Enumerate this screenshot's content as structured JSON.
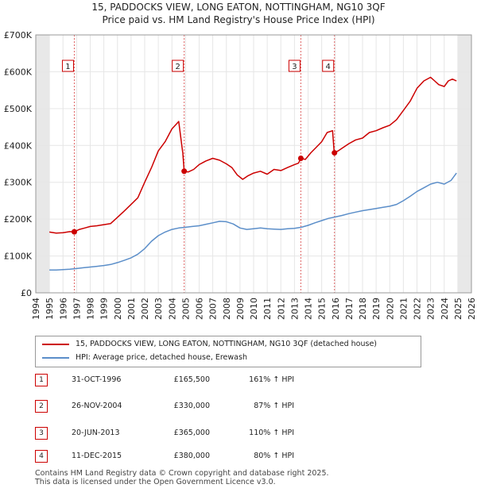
{
  "title": {
    "line1": "15, PADDOCKS VIEW, LONG EATON, NOTTINGHAM, NG10 3QF",
    "line2": "Price paid vs. HM Land Registry's House Price Index (HPI)"
  },
  "chart_data": {
    "type": "line",
    "title": "15, PADDOCKS VIEW, LONG EATON, NOTTINGHAM, NG10 3QF — Price paid vs. HM Land Registry's House Price Index (HPI)",
    "xlim": [
      1994,
      2026
    ],
    "ylim": [
      0,
      700000
    ],
    "y_ticks": [
      0,
      100000,
      200000,
      300000,
      400000,
      500000,
      600000,
      700000
    ],
    "y_tick_labels": [
      "£0",
      "£100K",
      "£200K",
      "£300K",
      "£400K",
      "£500K",
      "£600K",
      "£700K"
    ],
    "x_ticks": [
      1994,
      1995,
      1996,
      1997,
      1998,
      1999,
      2000,
      2001,
      2002,
      2003,
      2004,
      2005,
      2006,
      2007,
      2008,
      2009,
      2010,
      2011,
      2012,
      2013,
      2014,
      2015,
      2016,
      2017,
      2018,
      2019,
      2020,
      2021,
      2022,
      2023,
      2024,
      2025,
      2026
    ],
    "x_tick_labels": [
      "1994",
      "1995",
      "1996",
      "1997",
      "1998",
      "1999",
      "2000",
      "2001",
      "2002",
      "2003",
      "2004",
      "2005",
      "2006",
      "2007",
      "2008",
      "2009",
      "2010",
      "2011",
      "2012",
      "2013",
      "2014",
      "2015",
      "2016",
      "2017",
      "2018",
      "2019",
      "2020",
      "2021",
      "2022",
      "2023",
      "2024",
      "2025",
      "2026"
    ],
    "shaded_ranges": [
      [
        1994,
        1995
      ],
      [
        2025,
        2026
      ]
    ],
    "series": [
      {
        "name": "15, PADDOCKS VIEW, LONG EATON, NOTTINGHAM, NG10 3QF (detached house)",
        "color": "#cc0000",
        "x": [
          1995.0,
          1995.5,
          1996.0,
          1996.5,
          1996.83,
          1997.2,
          1997.6,
          1998.0,
          1998.5,
          1999.0,
          1999.5,
          2000.0,
          2000.5,
          2001.0,
          2001.5,
          2002.0,
          2002.5,
          2003.0,
          2003.5,
          2004.0,
          2004.5,
          2004.8,
          2004.9,
          2005.2,
          2005.6,
          2006.0,
          2006.5,
          2007.0,
          2007.5,
          2008.0,
          2008.4,
          2008.8,
          2009.2,
          2009.6,
          2010.0,
          2010.5,
          2011.0,
          2011.5,
          2012.0,
          2012.5,
          2013.0,
          2013.3,
          2013.47,
          2013.8,
          2014.2,
          2014.6,
          2015.0,
          2015.4,
          2015.8,
          2015.92,
          2016.2,
          2016.6,
          2017.0,
          2017.5,
          2018.0,
          2018.5,
          2019.0,
          2019.5,
          2020.0,
          2020.5,
          2021.0,
          2021.5,
          2022.0,
          2022.5,
          2023.0,
          2023.3,
          2023.6,
          2024.0,
          2024.3,
          2024.6,
          2024.9
        ],
        "values": [
          165000,
          162000,
          163000,
          166000,
          165500,
          172000,
          176000,
          180000,
          182000,
          185000,
          188000,
          205000,
          222000,
          240000,
          258000,
          300000,
          340000,
          385000,
          410000,
          445000,
          465000,
          380000,
          330000,
          328000,
          335000,
          348000,
          358000,
          365000,
          360000,
          350000,
          340000,
          320000,
          308000,
          318000,
          325000,
          330000,
          322000,
          335000,
          332000,
          340000,
          348000,
          352000,
          365000,
          362000,
          380000,
          395000,
          410000,
          435000,
          440000,
          380000,
          385000,
          395000,
          405000,
          415000,
          420000,
          435000,
          440000,
          448000,
          455000,
          470000,
          495000,
          520000,
          555000,
          575000,
          585000,
          575000,
          565000,
          560000,
          575000,
          580000,
          575000
        ]
      },
      {
        "name": "HPI: Average price, detached house, Erewash",
        "color": "#5b8ec9",
        "x": [
          1995.0,
          1995.5,
          1996.0,
          1996.5,
          1997.0,
          1997.5,
          1998.0,
          1998.5,
          1999.0,
          1999.5,
          2000.0,
          2000.5,
          2001.0,
          2001.5,
          2002.0,
          2002.5,
          2003.0,
          2003.5,
          2004.0,
          2004.5,
          2005.0,
          2005.5,
          2006.0,
          2006.5,
          2007.0,
          2007.5,
          2008.0,
          2008.5,
          2009.0,
          2009.5,
          2010.0,
          2010.5,
          2011.0,
          2011.5,
          2012.0,
          2012.5,
          2013.0,
          2013.5,
          2014.0,
          2014.5,
          2015.0,
          2015.5,
          2016.0,
          2016.5,
          2017.0,
          2017.5,
          2018.0,
          2018.5,
          2019.0,
          2019.5,
          2020.0,
          2020.5,
          2021.0,
          2021.5,
          2022.0,
          2022.5,
          2023.0,
          2023.5,
          2024.0,
          2024.5,
          2024.9
        ],
        "values": [
          62000,
          62000,
          63000,
          64000,
          66000,
          68000,
          70000,
          72000,
          74000,
          77000,
          82000,
          88000,
          95000,
          105000,
          120000,
          140000,
          155000,
          165000,
          172000,
          176000,
          178000,
          180000,
          182000,
          186000,
          190000,
          194000,
          193000,
          187000,
          176000,
          172000,
          174000,
          176000,
          174000,
          173000,
          172000,
          174000,
          175000,
          178000,
          183000,
          190000,
          196000,
          202000,
          206000,
          210000,
          215000,
          219000,
          223000,
          226000,
          229000,
          232000,
          235000,
          240000,
          250000,
          262000,
          275000,
          285000,
          295000,
          300000,
          295000,
          305000,
          325000
        ]
      }
    ],
    "sale_markers": [
      {
        "label": "1",
        "x": 1996.83,
        "value": 165500
      },
      {
        "label": "2",
        "x": 2004.9,
        "value": 330000
      },
      {
        "label": "3",
        "x": 2013.47,
        "value": 365000
      },
      {
        "label": "4",
        "x": 2015.94,
        "value": 380000
      }
    ]
  },
  "legend": {
    "property": "15, PADDOCKS VIEW, LONG EATON, NOTTINGHAM, NG10 3QF (detached house)",
    "hpi": "HPI: Average price, detached house, Erewash"
  },
  "sales": [
    {
      "num": "1",
      "date": "31-OCT-1996",
      "price": "£165,500",
      "hpi": "161% ↑ HPI"
    },
    {
      "num": "2",
      "date": "26-NOV-2004",
      "price": "£330,000",
      "hpi": "87% ↑ HPI"
    },
    {
      "num": "3",
      "date": "20-JUN-2013",
      "price": "£365,000",
      "hpi": "110% ↑ HPI"
    },
    {
      "num": "4",
      "date": "11-DEC-2015",
      "price": "£380,000",
      "hpi": "80% ↑ HPI"
    }
  ],
  "footer": {
    "line1": "Contains HM Land Registry data © Crown copyright and database right 2025.",
    "line2": "This data is licensed under the Open Government Licence v3.0."
  },
  "colors": {
    "property_line": "#cc0000",
    "hpi_line": "#5b8ec9",
    "marker_border": "#cc0000",
    "grid": "#e6e6e6"
  }
}
